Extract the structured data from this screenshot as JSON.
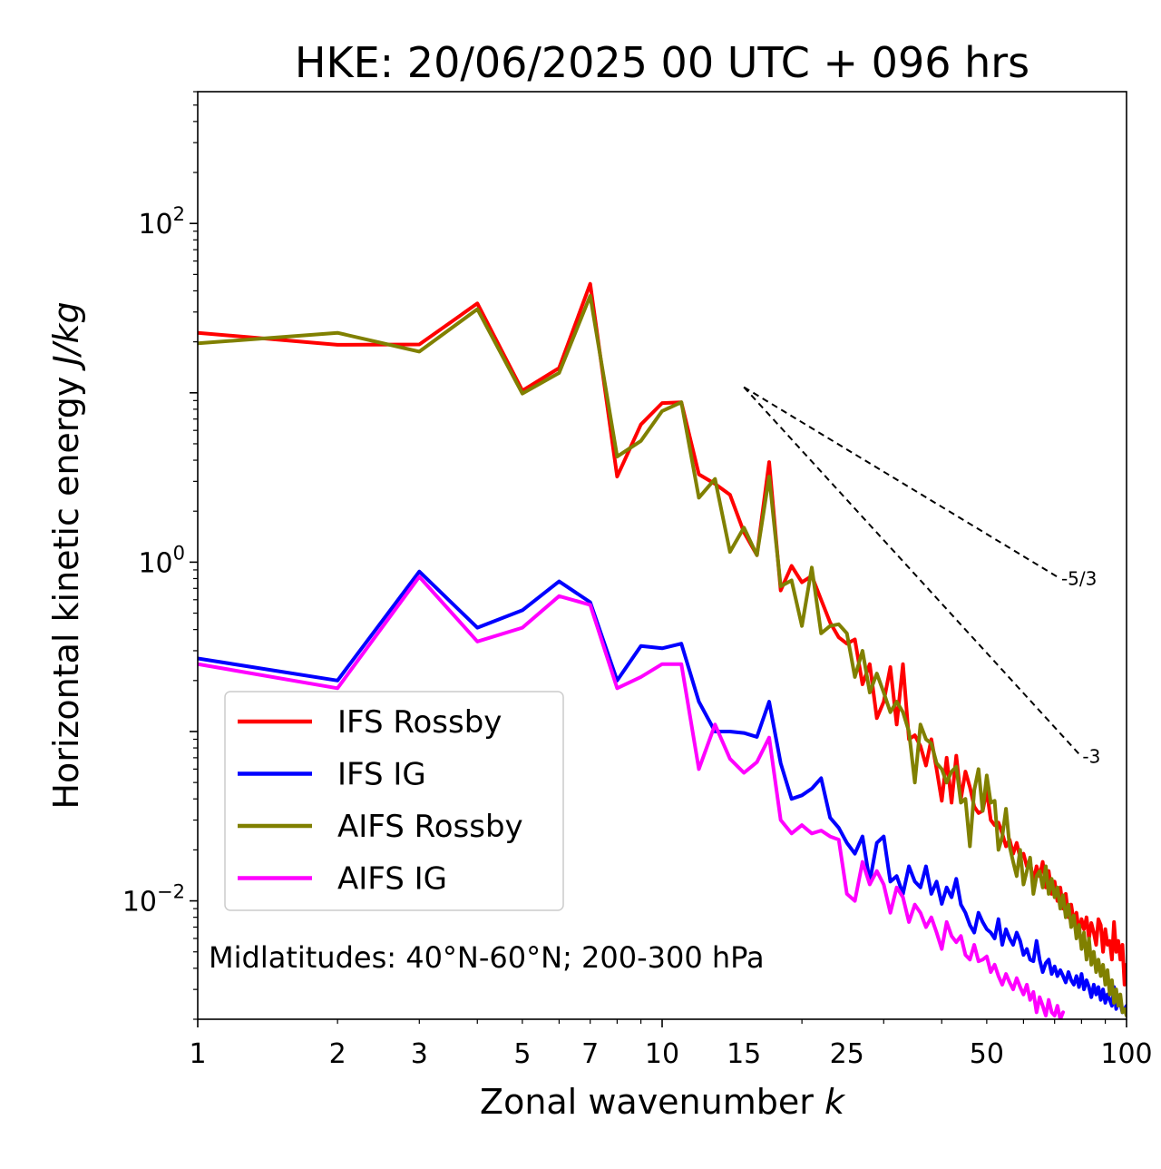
{
  "chart_data": {
    "type": "line",
    "title": "HKE: 20/06/2025 00 UTC + 096 hrs",
    "xlabel": "Zonal wavenumber k",
    "ylabel": "Horizontal kinetic energy J/kg",
    "xscale": "log",
    "yscale": "log",
    "xlim": [
      1,
      100
    ],
    "ylim": [
      0.002,
      600
    ],
    "x_ticks": [
      {
        "value": 1,
        "label": "1"
      },
      {
        "value": 2,
        "label": "2"
      },
      {
        "value": 3,
        "label": "3"
      },
      {
        "value": 5,
        "label": "5"
      },
      {
        "value": 7,
        "label": "7"
      },
      {
        "value": 10,
        "label": "10"
      },
      {
        "value": 15,
        "label": "15"
      },
      {
        "value": 25,
        "label": "25"
      },
      {
        "value": 50,
        "label": "50"
      },
      {
        "value": 100,
        "label": "100"
      }
    ],
    "y_ticks": [
      {
        "value": 0.01,
        "base": "10",
        "exp": "−2"
      },
      {
        "value": 1,
        "base": "10",
        "exp": "0"
      },
      {
        "value": 100,
        "base": "10",
        "exp": "2"
      }
    ],
    "legend_position": "lower-left",
    "annotation": "Midlatitudes: 40°N-60°N; 200-300 hPa",
    "reference_lines": [
      {
        "label": "-5/3",
        "x": [
          15,
          72
        ],
        "y": [
          10.8,
          0.8
        ]
      },
      {
        "label": "-3",
        "x": [
          15,
          80
        ],
        "y": [
          10.8,
          0.071
        ]
      }
    ],
    "series": [
      {
        "name": "IFS Rossby",
        "color": "#ff0000",
        "x": [
          1,
          2,
          3,
          4,
          5,
          6,
          7,
          8,
          9,
          10,
          11,
          12,
          13,
          14,
          15,
          16,
          17,
          18,
          19,
          20,
          21,
          22,
          23,
          24,
          25,
          26,
          27,
          28,
          29,
          30,
          31,
          32,
          33,
          34,
          35,
          36,
          37,
          38,
          39,
          40,
          41,
          42,
          43,
          44,
          45,
          46,
          47,
          48,
          49,
          50,
          51,
          52,
          53,
          54,
          55,
          56,
          57,
          58,
          59,
          60,
          61,
          62,
          63,
          64,
          65,
          66,
          67,
          68,
          69,
          70,
          71,
          72,
          73,
          74,
          75,
          76,
          77,
          78,
          79,
          80,
          81,
          82,
          83,
          84,
          85,
          86,
          87,
          88,
          89,
          90,
          91,
          92,
          93,
          94,
          95,
          96,
          97,
          98,
          99,
          100
        ],
        "y": [
          22.6,
          19.2,
          19.3,
          33.7,
          10.3,
          14.0,
          44.0,
          3.2,
          6.5,
          8.7,
          8.8,
          3.3,
          2.9,
          2.5,
          1.5,
          1.1,
          3.9,
          0.68,
          0.95,
          0.76,
          0.83,
          0.6,
          0.44,
          0.36,
          0.33,
          0.35,
          0.19,
          0.25,
          0.12,
          0.15,
          0.24,
          0.11,
          0.25,
          0.09,
          0.095,
          0.082,
          0.063,
          0.09,
          0.06,
          0.039,
          0.07,
          0.038,
          0.072,
          0.04,
          0.058,
          0.047,
          0.036,
          0.033,
          0.034,
          0.045,
          0.03,
          0.028,
          0.029,
          0.025,
          0.021,
          0.023,
          0.019,
          0.022,
          0.018,
          0.019,
          0.016,
          0.017,
          0.013,
          0.016,
          0.014,
          0.017,
          0.012,
          0.015,
          0.011,
          0.013,
          0.01,
          0.012,
          0.009,
          0.011,
          0.008,
          0.0095,
          0.0075,
          0.0085,
          0.0065,
          0.0078,
          0.0068,
          0.008,
          0.006,
          0.0074,
          0.0065,
          0.0055,
          0.0078,
          0.0072,
          0.005,
          0.0068,
          0.0055,
          0.0058,
          0.0045,
          0.0075,
          0.005,
          0.0058,
          0.0045,
          0.0055,
          0.0032,
          0.0042
        ]
      },
      {
        "name": "IFS IG",
        "color": "#0000ff",
        "x": [
          1,
          2,
          3,
          4,
          5,
          6,
          7,
          8,
          9,
          10,
          11,
          12,
          13,
          14,
          15,
          16,
          17,
          18,
          19,
          20,
          21,
          22,
          23,
          24,
          25,
          26,
          27,
          28,
          29,
          30,
          31,
          32,
          33,
          34,
          35,
          36,
          37,
          38,
          39,
          40,
          41,
          42,
          43,
          44,
          45,
          46,
          47,
          48,
          49,
          50,
          51,
          52,
          53,
          54,
          55,
          56,
          57,
          58,
          59,
          60,
          61,
          62,
          63,
          64,
          65,
          66,
          67,
          68,
          69,
          70,
          71,
          72,
          73,
          74,
          75,
          76,
          77,
          78,
          79,
          80,
          81,
          82,
          83,
          84,
          85,
          86,
          87,
          88,
          89,
          90,
          91,
          92,
          93,
          94,
          95,
          96,
          97,
          98,
          99,
          100
        ],
        "y": [
          0.27,
          0.2,
          0.88,
          0.41,
          0.52,
          0.77,
          0.58,
          0.2,
          0.32,
          0.31,
          0.33,
          0.15,
          0.1,
          0.1,
          0.098,
          0.093,
          0.15,
          0.065,
          0.04,
          0.042,
          0.046,
          0.053,
          0.031,
          0.027,
          0.022,
          0.019,
          0.024,
          0.013,
          0.022,
          0.024,
          0.013,
          0.014,
          0.011,
          0.016,
          0.013,
          0.012,
          0.016,
          0.011,
          0.013,
          0.0096,
          0.012,
          0.0105,
          0.0135,
          0.0095,
          0.0085,
          0.0072,
          0.0065,
          0.0085,
          0.0075,
          0.0068,
          0.0065,
          0.006,
          0.0078,
          0.0055,
          0.0068,
          0.006,
          0.0055,
          0.0065,
          0.0058,
          0.0048,
          0.0052,
          0.0045,
          0.0044,
          0.0058,
          0.0045,
          0.0038,
          0.0043,
          0.0045,
          0.0037,
          0.0041,
          0.0036,
          0.0039,
          0.0036,
          0.0033,
          0.0038,
          0.0034,
          0.0032,
          0.0036,
          0.0031,
          0.0037,
          0.003,
          0.0034,
          0.0031,
          0.0027,
          0.0032,
          0.0028,
          0.0031,
          0.0026,
          0.003,
          0.0025,
          0.0028,
          0.0026,
          0.0024,
          0.0031,
          0.0023,
          0.0026,
          0.0025,
          0.0022,
          0.0023,
          0.0024
        ]
      },
      {
        "name": "AIFS Rossby",
        "color": "#808000",
        "x": [
          1,
          2,
          3,
          4,
          5,
          6,
          7,
          8,
          9,
          10,
          11,
          12,
          13,
          14,
          15,
          16,
          17,
          18,
          19,
          20,
          21,
          22,
          23,
          24,
          25,
          26,
          27,
          28,
          29,
          30,
          31,
          32,
          33,
          34,
          35,
          36,
          37,
          38,
          39,
          40,
          41,
          42,
          43,
          44,
          45,
          46,
          47,
          48,
          49,
          50,
          51,
          52,
          53,
          54,
          55,
          56,
          57,
          58,
          59,
          60,
          61,
          62,
          63,
          64,
          65,
          66,
          67,
          68,
          69,
          70,
          71,
          72,
          73,
          74,
          75,
          76,
          77,
          78,
          79,
          80,
          81,
          82,
          83,
          84,
          85,
          86,
          87,
          88,
          89,
          90,
          91,
          92,
          93,
          94,
          95,
          96,
          97,
          98,
          99,
          100
        ],
        "y": [
          19.6,
          22.6,
          17.5,
          31.2,
          9.9,
          13.1,
          37.4,
          4.2,
          5.2,
          7.8,
          8.8,
          2.4,
          3.1,
          1.15,
          1.6,
          1.1,
          3.2,
          0.72,
          0.78,
          0.42,
          0.93,
          0.38,
          0.42,
          0.43,
          0.38,
          0.21,
          0.3,
          0.17,
          0.22,
          0.17,
          0.13,
          0.15,
          0.13,
          0.1,
          0.05,
          0.11,
          0.09,
          0.085,
          0.065,
          0.06,
          0.05,
          0.058,
          0.062,
          0.038,
          0.04,
          0.021,
          0.045,
          0.06,
          0.034,
          0.055,
          0.038,
          0.039,
          0.02,
          0.024,
          0.035,
          0.021,
          0.017,
          0.014,
          0.02,
          0.0125,
          0.015,
          0.018,
          0.011,
          0.014,
          0.015,
          0.012,
          0.016,
          0.011,
          0.0135,
          0.0105,
          0.012,
          0.009,
          0.0108,
          0.008,
          0.0095,
          0.007,
          0.0082,
          0.006,
          0.0072,
          0.0052,
          0.0065,
          0.0045,
          0.006,
          0.0042,
          0.005,
          0.0038,
          0.0045,
          0.0036,
          0.0042,
          0.0032,
          0.0039,
          0.0028,
          0.0034,
          0.0025,
          0.003,
          0.0024,
          0.0028,
          0.0022,
          0.0023,
          0.0021
        ]
      },
      {
        "name": "AIFS IG",
        "color": "#ff00ff",
        "x": [
          1,
          2,
          3,
          4,
          5,
          6,
          7,
          8,
          9,
          10,
          11,
          12,
          13,
          14,
          15,
          16,
          17,
          18,
          19,
          20,
          21,
          22,
          23,
          24,
          25,
          26,
          27,
          28,
          29,
          30,
          31,
          32,
          33,
          34,
          35,
          36,
          37,
          38,
          39,
          40,
          41,
          42,
          43,
          44,
          45,
          46,
          47,
          48,
          49,
          50,
          51,
          52,
          53,
          54,
          55,
          56,
          57,
          58,
          59,
          60,
          61,
          62,
          63,
          64,
          65,
          66,
          67,
          68,
          69,
          70,
          71,
          72,
          73
        ],
        "y": [
          0.25,
          0.18,
          0.82,
          0.34,
          0.41,
          0.63,
          0.56,
          0.18,
          0.21,
          0.25,
          0.25,
          0.06,
          0.11,
          0.069,
          0.057,
          0.066,
          0.092,
          0.03,
          0.025,
          0.028,
          0.025,
          0.026,
          0.024,
          0.023,
          0.011,
          0.01,
          0.017,
          0.0125,
          0.015,
          0.0125,
          0.0085,
          0.012,
          0.0105,
          0.0075,
          0.0095,
          0.0085,
          0.007,
          0.008,
          0.0065,
          0.0052,
          0.0075,
          0.0062,
          0.0057,
          0.0062,
          0.0048,
          0.0045,
          0.0055,
          0.0044,
          0.0045,
          0.0047,
          0.0038,
          0.0042,
          0.0036,
          0.0032,
          0.0037,
          0.0033,
          0.003,
          0.0035,
          0.0031,
          0.0028,
          0.0032,
          0.0026,
          0.0029,
          0.0022,
          0.0027,
          0.0024,
          0.0021,
          0.0026,
          0.0022,
          0.0021,
          0.0024,
          0.002,
          0.0022
        ]
      }
    ]
  }
}
